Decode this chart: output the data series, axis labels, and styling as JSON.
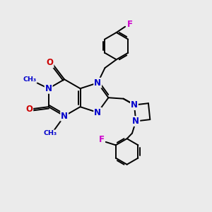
{
  "bg_color": "#ebebeb",
  "bond_color": "#000000",
  "N_color": "#0000cc",
  "O_color": "#cc0000",
  "F_color": "#cc00cc",
  "line_width": 1.4,
  "figsize": [
    3.0,
    3.0
  ],
  "dpi": 100,
  "xlim": [
    0,
    10
  ],
  "ylim": [
    0,
    10
  ]
}
